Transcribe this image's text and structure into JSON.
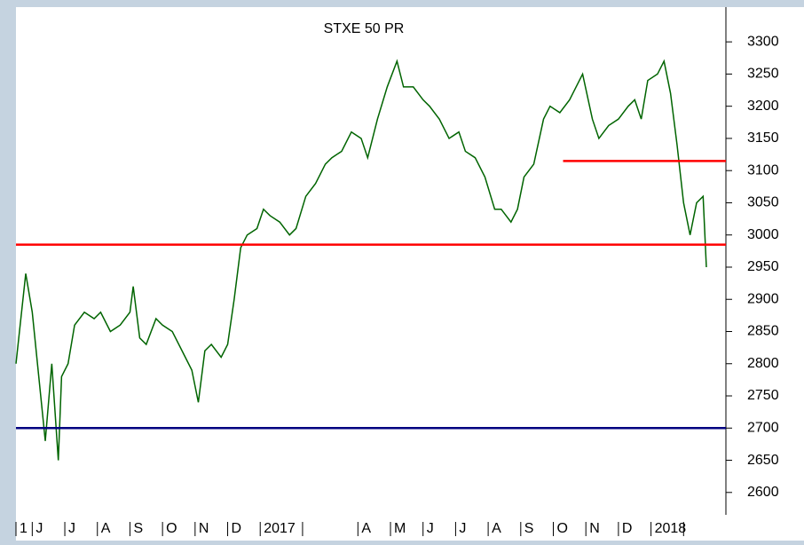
{
  "chart_data": {
    "type": "line",
    "title": "STXE 50 PR",
    "x": [
      4.5,
      4.8,
      5.0,
      5.2,
      5.4,
      5.6,
      5.8,
      5.9,
      6.1,
      6.3,
      6.6,
      6.9,
      7.1,
      7.4,
      7.7,
      8.0,
      8.1,
      8.3,
      8.5,
      8.8,
      9.0,
      9.3,
      9.6,
      9.9,
      10.1,
      10.3,
      10.5,
      10.8,
      11.0,
      11.2,
      11.4,
      11.6,
      11.9,
      12.1,
      12.3,
      12.6,
      12.9,
      13.1,
      13.4,
      13.7,
      14.0,
      14.2,
      14.5,
      14.8,
      15.1,
      15.3,
      15.6,
      15.9,
      16.2,
      16.4,
      16.7,
      17.0,
      17.2,
      17.5,
      17.8,
      18.1,
      18.3,
      18.6,
      18.9,
      19.2,
      19.4,
      19.7,
      19.9,
      20.1,
      20.4,
      20.7,
      20.9,
      21.2,
      21.5,
      21.7,
      21.9,
      22.2,
      22.4,
      22.7,
      23.0,
      23.3,
      23.5,
      23.7,
      23.9,
      24.2,
      24.4,
      24.6,
      24.8,
      25.0,
      25.2,
      25.4,
      25.6,
      25.7
    ],
    "series": [
      {
        "color": "#006400",
        "values": [
          2800,
          2940,
          2880,
          2780,
          2680,
          2800,
          2650,
          2780,
          2800,
          2860,
          2880,
          2870,
          2880,
          2850,
          2860,
          2880,
          2920,
          2840,
          2830,
          2870,
          2860,
          2850,
          2820,
          2790,
          2740,
          2820,
          2830,
          2810,
          2830,
          2900,
          2980,
          3000,
          3010,
          3040,
          3030,
          3020,
          3000,
          3010,
          3060,
          3080,
          3110,
          3120,
          3130,
          3160,
          3150,
          3120,
          3180,
          3230,
          3270,
          3230,
          3230,
          3210,
          3200,
          3180,
          3150,
          3160,
          3130,
          3120,
          3090,
          3040,
          3040,
          3020,
          3040,
          3090,
          3110,
          3180,
          3200,
          3190,
          3210,
          3230,
          3250,
          3180,
          3150,
          3170,
          3180,
          3200,
          3210,
          3180,
          3240,
          3250,
          3270,
          3220,
          3140,
          3050,
          3000,
          3050,
          3060,
          2950
        ]
      }
    ],
    "reference_lines": [
      {
        "value": 2985,
        "color": "#ff0000"
      },
      {
        "value": 3115,
        "color": "#ff0000",
        "from": 21.3
      },
      {
        "value": 2700,
        "color": "#000080"
      }
    ],
    "xlim": [
      4.5,
      26.3
    ],
    "xticks": [
      {
        "value": 4.5,
        "label": "1"
      },
      {
        "value": 5,
        "label": "J"
      },
      {
        "value": 6,
        "label": "J"
      },
      {
        "value": 7,
        "label": "A"
      },
      {
        "value": 8,
        "label": "S"
      },
      {
        "value": 9,
        "label": "O"
      },
      {
        "value": 10,
        "label": "N"
      },
      {
        "value": 11,
        "label": "D"
      },
      {
        "value": 12,
        "label": "2017"
      },
      {
        "value": 15,
        "label": "A"
      },
      {
        "value": 16,
        "label": "M"
      },
      {
        "value": 17,
        "label": "J"
      },
      {
        "value": 18,
        "label": "J"
      },
      {
        "value": 19,
        "label": "A"
      },
      {
        "value": 20,
        "label": "S"
      },
      {
        "value": 21,
        "label": "O"
      },
      {
        "value": 22,
        "label": "N"
      },
      {
        "value": 23,
        "label": "D"
      },
      {
        "value": 24,
        "label": "2018"
      }
    ],
    "xminor_ticks": [
      13.3,
      25
    ],
    "ylim": [
      2568,
      3354
    ],
    "yticks": [
      2600,
      2650,
      2700,
      2750,
      2800,
      2850,
      2900,
      2950,
      3000,
      3050,
      3100,
      3150,
      3200,
      3250,
      3300
    ],
    "y_axis_side": "right"
  }
}
